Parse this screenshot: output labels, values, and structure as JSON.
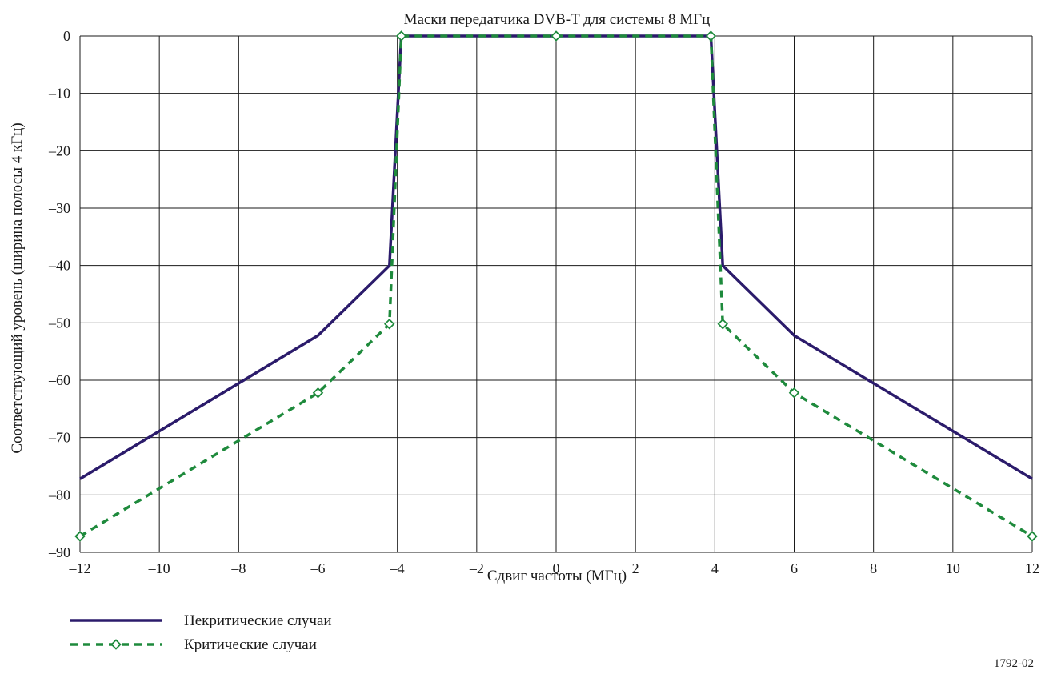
{
  "chart_data": {
    "type": "line",
    "title": "Маски передатчика  DVB-T для системы 8 МГц",
    "xlabel": "Сдвиг частоты (МГц)",
    "ylabel": "Соответствующий уровень (ширина полосы 4 кГц)",
    "xlim": [
      -12,
      12
    ],
    "ylim": [
      -90,
      0
    ],
    "x_ticks": [
      -12,
      -10,
      -8,
      -6,
      -4,
      -2,
      0,
      2,
      4,
      6,
      8,
      10,
      12
    ],
    "y_ticks": [
      0,
      -10,
      -20,
      -30,
      -40,
      -50,
      -60,
      -70,
      -80,
      -90
    ],
    "x_tick_labels": [
      "–12",
      "–10",
      "–8",
      "–6",
      "–4",
      "–2",
      "0",
      "2",
      "4",
      "6",
      "8",
      "10",
      "12"
    ],
    "y_tick_labels": [
      "0",
      "–10",
      "–20",
      "–30",
      "–40",
      "–50",
      "–60",
      "–70",
      "–80",
      "–90"
    ],
    "grid": true,
    "legend_position": "bottom-left",
    "series": [
      {
        "name": "Некритические случаи",
        "color": "#2b1b6b",
        "style": "solid",
        "marker": "none",
        "points": [
          [
            -12,
            -77.2
          ],
          [
            -6,
            -52.2
          ],
          [
            -4.2,
            -40
          ],
          [
            -3.9,
            0
          ],
          [
            3.9,
            0
          ],
          [
            4.2,
            -40
          ],
          [
            6,
            -52.2
          ],
          [
            12,
            -77.2
          ]
        ]
      },
      {
        "name": "Критические случаи",
        "color": "#1e8a3c",
        "style": "dashed",
        "marker": "diamond",
        "points": [
          [
            -12,
            -87.2
          ],
          [
            -6,
            -62.2
          ],
          [
            -4.2,
            -50.2
          ],
          [
            -3.9,
            0
          ],
          [
            0,
            0
          ],
          [
            3.9,
            0
          ],
          [
            4.2,
            -50.2
          ],
          [
            6,
            -62.2
          ],
          [
            12,
            -87.2
          ]
        ]
      }
    ],
    "figure_id": "1792-02"
  }
}
